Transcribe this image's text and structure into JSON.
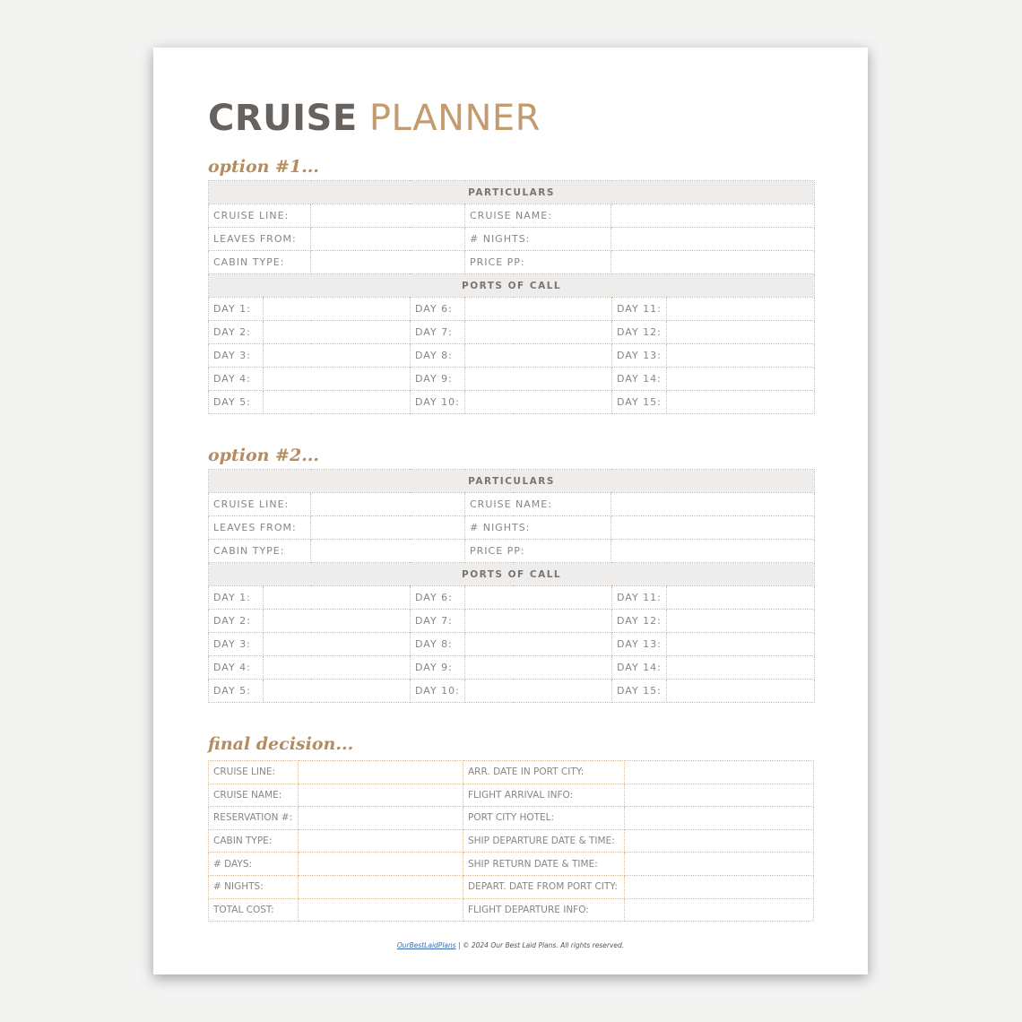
{
  "title": {
    "bold": "CRUISE",
    "light": "PLANNER"
  },
  "options": [
    {
      "heading": "option #1...",
      "particulars_header": "PARTICULARS",
      "particulars": [
        [
          "CRUISE LINE:",
          "CRUISE NAME:"
        ],
        [
          "LEAVES FROM:",
          "# NIGHTS:"
        ],
        [
          "CABIN TYPE:",
          "PRICE PP:"
        ]
      ],
      "ports_header": "PORTS OF CALL",
      "days": [
        [
          "DAY 1:",
          "DAY 6:",
          "DAY 11:"
        ],
        [
          "DAY 2:",
          "DAY 7:",
          "DAY 12:"
        ],
        [
          "DAY 3:",
          "DAY 8:",
          "DAY 13:"
        ],
        [
          "DAY 4:",
          "DAY 9:",
          "DAY 14:"
        ],
        [
          "DAY 5:",
          "DAY 10:",
          "DAY 15:"
        ]
      ]
    },
    {
      "heading": "option #2...",
      "particulars_header": "PARTICULARS",
      "particulars": [
        [
          "CRUISE LINE:",
          "CRUISE NAME:"
        ],
        [
          "LEAVES FROM:",
          "# NIGHTS:"
        ],
        [
          "CABIN TYPE:",
          "PRICE PP:"
        ]
      ],
      "ports_header": "PORTS OF CALL",
      "days": [
        [
          "DAY 1:",
          "DAY 6:",
          "DAY 11:"
        ],
        [
          "DAY 2:",
          "DAY 7:",
          "DAY 12:"
        ],
        [
          "DAY 3:",
          "DAY 8:",
          "DAY 13:"
        ],
        [
          "DAY 4:",
          "DAY 9:",
          "DAY 14:"
        ],
        [
          "DAY 5:",
          "DAY 10:",
          "DAY 15:"
        ]
      ]
    }
  ],
  "final": {
    "heading": "final decision...",
    "rows": [
      [
        "CRUISE LINE:",
        "ARR. DATE IN PORT CITY:"
      ],
      [
        "CRUISE NAME:",
        "FLIGHT ARRIVAL INFO:"
      ],
      [
        "RESERVATION #:",
        "PORT CITY HOTEL:"
      ],
      [
        "CABIN TYPE:",
        "SHIP DEPARTURE DATE & TIME:"
      ],
      [
        "# DAYS:",
        "SHIP RETURN DATE & TIME:"
      ],
      [
        "# NIGHTS:",
        "DEPART. DATE FROM PORT CITY:"
      ],
      [
        "TOTAL COST:",
        "FLIGHT DEPARTURE INFO:"
      ]
    ]
  },
  "footer": {
    "link": "OurBestLaidPlans",
    "text": " | © 2024 Our Best Laid Plans. All rights reserved."
  },
  "colors": {
    "title_dark": "#67625d",
    "accent_tan": "#c39b6e",
    "header_bg": "#efedeb",
    "border": "#d3bda2"
  }
}
